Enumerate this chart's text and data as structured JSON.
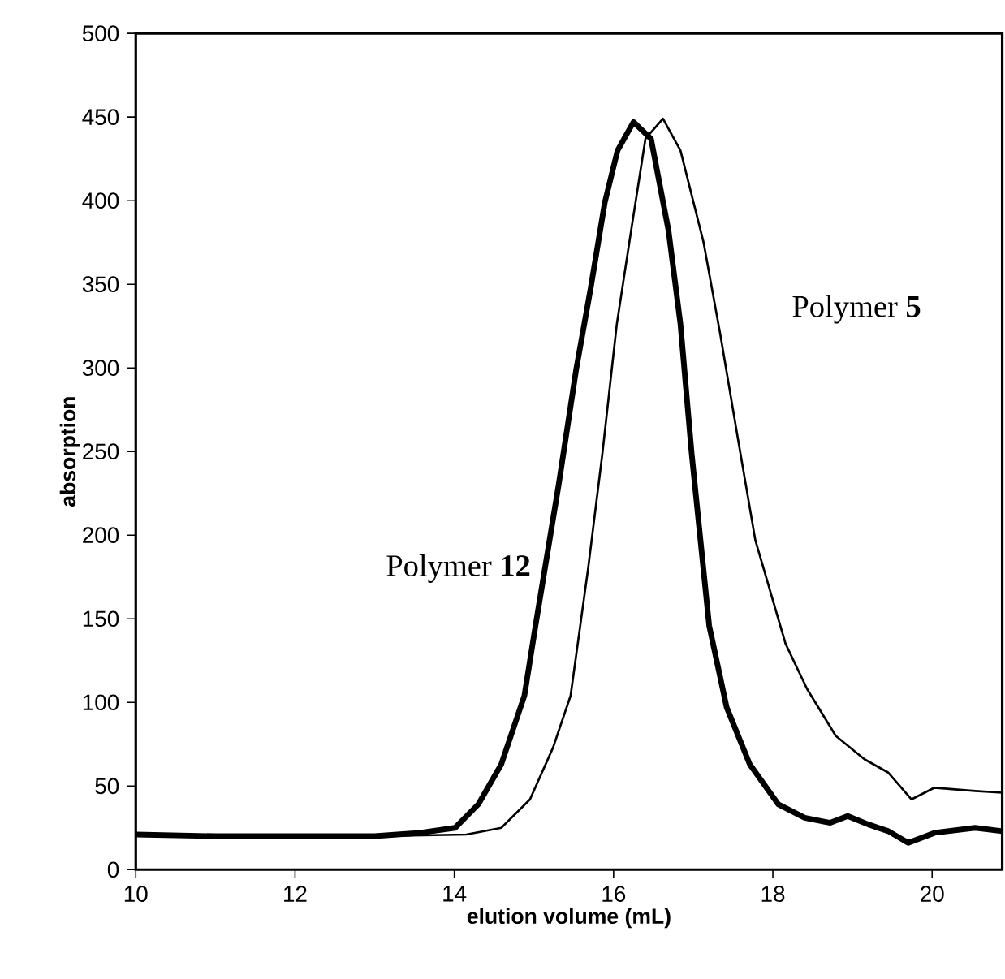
{
  "chart_data": {
    "type": "line",
    "xlabel": "elution volume (mL)",
    "ylabel": "absorption",
    "xlim": [
      10,
      20.88
    ],
    "ylim": [
      0,
      500
    ],
    "xticks": [
      10,
      12,
      14,
      16,
      18,
      20
    ],
    "yticks": [
      0,
      50,
      100,
      150,
      200,
      250,
      300,
      350,
      400,
      450,
      500
    ],
    "grid": false,
    "legend": false,
    "marker": "none",
    "line_style": "solid",
    "series": [
      {
        "name": "Polymer **12**",
        "color": "#000000",
        "x": [
          10,
          11,
          12,
          13,
          13.57,
          14.01,
          14.3,
          14.59,
          14.88,
          15.02,
          15.31,
          15.53,
          15.71,
          15.89,
          16.05,
          16.25,
          16.47,
          16.69,
          16.84,
          16.98,
          17.2,
          17.42,
          17.71,
          18.07,
          18.4,
          18.72,
          18.94,
          19.2,
          19.45,
          19.7,
          20.03,
          20.54,
          20.88
        ],
        "values": [
          21,
          20,
          20,
          20,
          22,
          25,
          39,
          63,
          104,
          146,
          230,
          299,
          347,
          399,
          430,
          447,
          437,
          382,
          326,
          249,
          146,
          97,
          63,
          39,
          31,
          28,
          32,
          27,
          23,
          16,
          22,
          25,
          23
        ]
      },
      {
        "name": "Polymer **5**",
        "color": "#000000",
        "x": [
          10,
          11,
          12,
          13,
          14.15,
          14.59,
          14.95,
          15.24,
          15.46,
          15.68,
          15.86,
          16.04,
          16.22,
          16.4,
          16.62,
          16.84,
          17.13,
          17.34,
          17.56,
          17.78,
          18.16,
          18.43,
          18.79,
          19.15,
          19.45,
          19.74,
          20.03,
          20.54,
          20.88
        ],
        "values": [
          21,
          20,
          20,
          20,
          21,
          25,
          42,
          73,
          104,
          180,
          249,
          326,
          382,
          437,
          449,
          430,
          375,
          320,
          258,
          197,
          135,
          108,
          80,
          66,
          58,
          42,
          49,
          47,
          46
        ]
      }
    ]
  }
}
